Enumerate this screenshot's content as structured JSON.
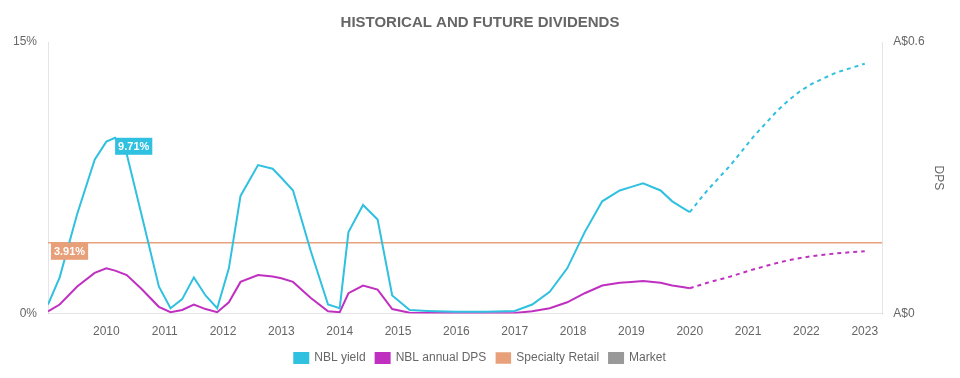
{
  "chart_data": {
    "type": "line",
    "title": "HISTORICAL AND FUTURE DIVIDENDS",
    "y2label": "DPS",
    "grid": false,
    "legend": "bottom",
    "xlim": [
      2009.0,
      2023.3
    ],
    "xticks": [
      2010,
      2011,
      2012,
      2013,
      2014,
      2015,
      2016,
      2017,
      2018,
      2019,
      2020,
      2021,
      2022,
      2023
    ],
    "ylim": [
      0,
      15
    ],
    "yticks": [
      {
        "value": 0,
        "label": "0%"
      },
      {
        "value": 15,
        "label": "15%"
      }
    ],
    "y2lim": [
      0,
      0.6
    ],
    "y2ticks": [
      {
        "value": 0,
        "label": "A$0"
      },
      {
        "value": 0.6,
        "label": "A$0.6"
      }
    ],
    "series": [
      {
        "name": "NBL yield",
        "color": "#30c0e0",
        "line_style": "solid",
        "x": [
          2009.0,
          2009.2,
          2009.5,
          2009.8,
          2010.0,
          2010.15,
          2010.35,
          2010.6,
          2010.9,
          2011.1,
          2011.3,
          2011.5,
          2011.7,
          2011.9,
          2012.1,
          2012.3,
          2012.6,
          2012.85,
          2013.0,
          2013.2,
          2013.5,
          2013.8,
          2014.0,
          2014.15,
          2014.4,
          2014.65,
          2014.9,
          2015.2,
          2015.5,
          2016.0,
          2016.5,
          2017.0,
          2017.3,
          2017.6,
          2017.9,
          2018.2,
          2018.5,
          2018.8,
          2019.0,
          2019.2,
          2019.5,
          2019.7,
          2019.9,
          2020.0
        ],
        "values": [
          0.5,
          2.0,
          5.5,
          8.5,
          9.5,
          9.71,
          8.8,
          5.5,
          1.5,
          0.3,
          0.8,
          2.0,
          1.0,
          0.3,
          2.5,
          6.5,
          8.2,
          8.0,
          7.5,
          6.8,
          3.5,
          0.5,
          0.3,
          4.5,
          6.0,
          5.2,
          1.0,
          0.2,
          0.15,
          0.1,
          0.1,
          0.15,
          0.5,
          1.2,
          2.5,
          4.5,
          6.2,
          6.8,
          7.0,
          7.2,
          6.8,
          6.2,
          5.8,
          5.6
        ]
      },
      {
        "name": "NBL yield",
        "color": "#30c0e0",
        "line_style": "dotted",
        "x": [
          2020.0,
          2020.15,
          2020.3,
          2020.5,
          2020.7,
          2020.9,
          2021.1,
          2021.3,
          2021.5,
          2021.7,
          2021.9,
          2022.1,
          2022.3,
          2022.5,
          2022.7,
          2022.9,
          2023.0
        ],
        "values": [
          5.6,
          6.2,
          6.8,
          7.5,
          8.2,
          9.0,
          9.8,
          10.5,
          11.2,
          11.8,
          12.3,
          12.7,
          13.0,
          13.3,
          13.5,
          13.7,
          13.8
        ]
      },
      {
        "name": "NBL annual DPS",
        "color": "#c030c0",
        "line_style": "solid",
        "axis": "y2",
        "x": [
          2009.0,
          2009.2,
          2009.5,
          2009.8,
          2010.0,
          2010.15,
          2010.35,
          2010.6,
          2010.9,
          2011.1,
          2011.3,
          2011.5,
          2011.7,
          2011.9,
          2012.1,
          2012.3,
          2012.6,
          2012.85,
          2013.0,
          2013.2,
          2013.5,
          2013.8,
          2014.0,
          2014.15,
          2014.4,
          2014.65,
          2014.9,
          2015.2,
          2015.5,
          2016.0,
          2016.5,
          2017.0,
          2017.3,
          2017.6,
          2017.9,
          2018.2,
          2018.5,
          2018.8,
          2019.0,
          2019.2,
          2019.5,
          2019.7,
          2019.9,
          2020.0
        ],
        "values": [
          0.005,
          0.02,
          0.06,
          0.09,
          0.1,
          0.095,
          0.085,
          0.055,
          0.015,
          0.003,
          0.008,
          0.02,
          0.01,
          0.003,
          0.025,
          0.07,
          0.085,
          0.082,
          0.078,
          0.07,
          0.035,
          0.005,
          0.003,
          0.045,
          0.062,
          0.053,
          0.01,
          0.002,
          0.0015,
          0.001,
          0.001,
          0.0015,
          0.005,
          0.012,
          0.025,
          0.045,
          0.062,
          0.068,
          0.07,
          0.072,
          0.068,
          0.062,
          0.058,
          0.056
        ]
      },
      {
        "name": "NBL annual DPS",
        "color": "#c030c0",
        "line_style": "dotted",
        "axis": "y2",
        "x": [
          2020.0,
          2020.15,
          2020.3,
          2020.5,
          2020.7,
          2020.9,
          2021.1,
          2021.3,
          2021.5,
          2021.7,
          2021.9,
          2022.1,
          2022.3,
          2022.5,
          2022.7,
          2022.9,
          2023.0
        ],
        "values": [
          0.056,
          0.062,
          0.068,
          0.075,
          0.082,
          0.09,
          0.098,
          0.105,
          0.112,
          0.118,
          0.123,
          0.127,
          0.13,
          0.133,
          0.135,
          0.137,
          0.138
        ]
      },
      {
        "name": "Specialty Retail",
        "color": "#e8a07a",
        "type": "hline",
        "line_style": "solid",
        "values": [
          3.91
        ]
      },
      {
        "name": "Market",
        "color": "#999999",
        "line_style": "solid",
        "x": [],
        "values": []
      }
    ],
    "annotations": [
      {
        "text": "9.71%",
        "x": 2010.15,
        "y": 9.71,
        "color": "#30c0e0"
      },
      {
        "text": "3.91%",
        "x": 2009.05,
        "y": 3.91,
        "color": "#e8a07a"
      }
    ]
  }
}
